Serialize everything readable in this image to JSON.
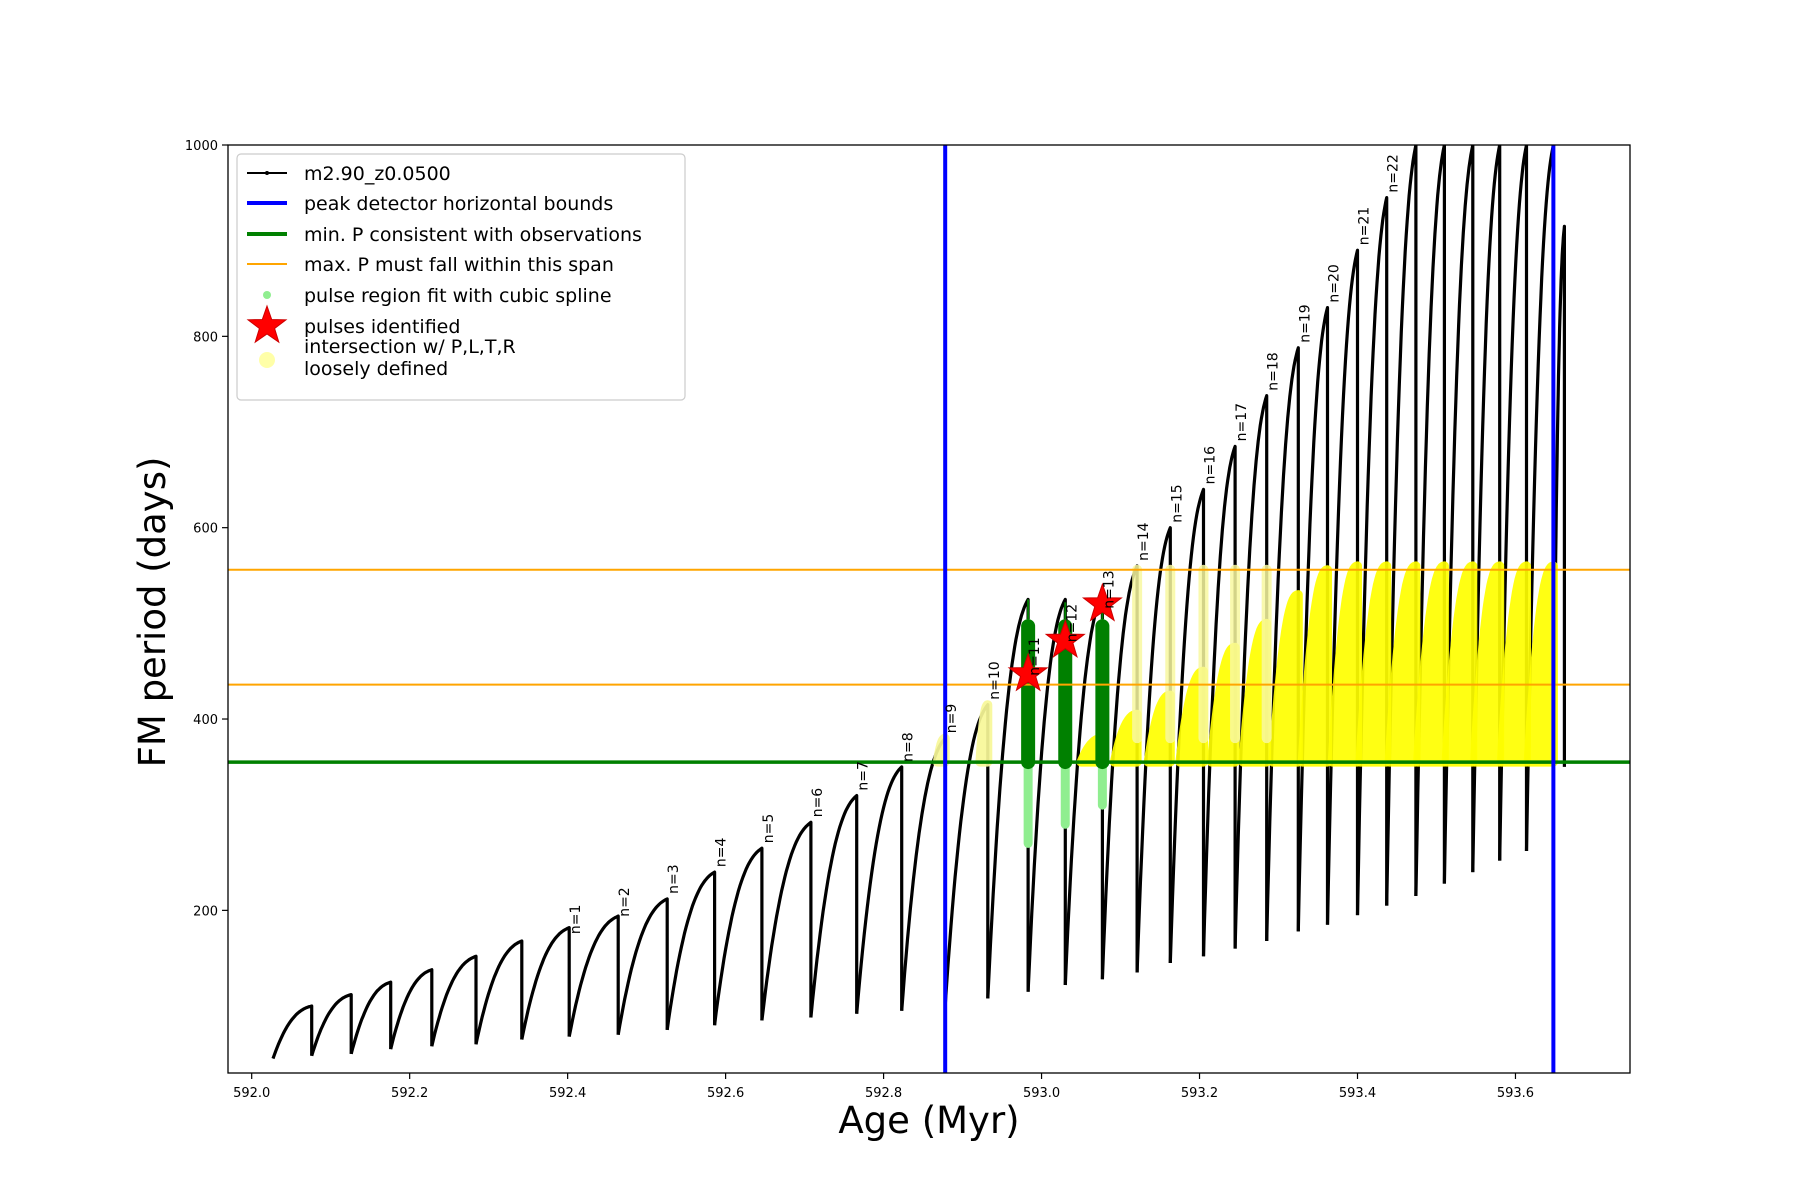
{
  "chart_data": {
    "type": "line",
    "xlabel": "Age (Myr)",
    "ylabel": "FM period (days)",
    "xlim": [
      591.97,
      593.745
    ],
    "ylim": [
      30,
      1000
    ],
    "xticks": [
      "592.0",
      "592.2",
      "592.4",
      "592.6",
      "592.8",
      "593.0",
      "593.2",
      "593.4",
      "593.6"
    ],
    "yticks": [
      "200",
      "400",
      "600",
      "800",
      "1000"
    ],
    "legend": {
      "placement": "top-left",
      "entries": [
        {
          "label": "m2.90_z0.0500",
          "kind": "line-dot",
          "color": "#000000"
        },
        {
          "label": "peak detector horizontal bounds",
          "kind": "line",
          "color": "#0000ff"
        },
        {
          "label": "min. P consistent with observations",
          "kind": "line",
          "color": "#008000"
        },
        {
          "label": "max. P must fall within this span",
          "kind": "thin-line",
          "color": "#ffa500"
        },
        {
          "label": "pulse region fit with cubic spline",
          "kind": "dot",
          "color": "#90ee90"
        },
        {
          "label": "pulses identified",
          "kind": "star",
          "color": "#ff0000"
        },
        {
          "label": "intersection w/ P,L,T,R",
          "label2": "loosely defined",
          "kind": "circle",
          "color": "#ffffa8"
        }
      ]
    },
    "series": [
      {
        "name": "m2.90_z0.0500",
        "color": "#000000",
        "pulses": [
          {
            "start": 592.027,
            "end": 592.076,
            "min": 45,
            "max": 100
          },
          {
            "start": 592.076,
            "end": 592.126,
            "min": 48,
            "max": 112
          },
          {
            "start": 592.126,
            "end": 592.176,
            "min": 50,
            "max": 125
          },
          {
            "start": 592.176,
            "end": 592.228,
            "min": 55,
            "max": 138
          },
          {
            "start": 592.228,
            "end": 592.284,
            "min": 58,
            "max": 152
          },
          {
            "start": 592.284,
            "end": 592.342,
            "min": 60,
            "max": 168
          },
          {
            "start": 592.342,
            "end": 592.402,
            "min": 65,
            "max": 182
          },
          {
            "start": 592.402,
            "end": 592.464,
            "min": 68,
            "max": 194
          },
          {
            "start": 592.464,
            "end": 592.526,
            "min": 70,
            "max": 212
          },
          {
            "start": 592.526,
            "end": 592.586,
            "min": 75,
            "max": 240
          },
          {
            "start": 592.586,
            "end": 592.646,
            "min": 80,
            "max": 265
          },
          {
            "start": 592.646,
            "end": 592.708,
            "min": 85,
            "max": 292
          },
          {
            "start": 592.708,
            "end": 592.766,
            "min": 88,
            "max": 320
          },
          {
            "start": 592.766,
            "end": 592.823,
            "min": 92,
            "max": 350
          },
          {
            "start": 592.823,
            "end": 592.878,
            "min": 95,
            "max": 380
          },
          {
            "start": 592.878,
            "end": 592.932,
            "min": 100,
            "max": 415
          },
          {
            "start": 592.932,
            "end": 592.983,
            "min": 108,
            "max": 525
          },
          {
            "start": 592.983,
            "end": 593.03,
            "min": 115,
            "max": 525
          },
          {
            "start": 593.03,
            "end": 593.077,
            "min": 122,
            "max": 530
          },
          {
            "start": 593.077,
            "end": 593.121,
            "min": 128,
            "max": 560
          },
          {
            "start": 593.121,
            "end": 593.163,
            "min": 135,
            "max": 600
          },
          {
            "start": 593.163,
            "end": 593.205,
            "min": 145,
            "max": 640
          },
          {
            "start": 593.205,
            "end": 593.245,
            "min": 152,
            "max": 685
          },
          {
            "start": 593.245,
            "end": 593.285,
            "min": 160,
            "max": 738
          },
          {
            "start": 593.285,
            "end": 593.325,
            "min": 168,
            "max": 788
          },
          {
            "start": 593.325,
            "end": 593.362,
            "min": 178,
            "max": 830
          },
          {
            "start": 593.362,
            "end": 593.4,
            "min": 185,
            "max": 890
          },
          {
            "start": 593.4,
            "end": 593.437,
            "min": 195,
            "max": 945
          },
          {
            "start": 593.437,
            "end": 593.474,
            "min": 205,
            "max": 1000
          },
          {
            "start": 593.474,
            "end": 593.51,
            "min": 215,
            "max": 1000
          },
          {
            "start": 593.51,
            "end": 593.546,
            "min": 228,
            "max": 1000
          },
          {
            "start": 593.546,
            "end": 593.58,
            "min": 240,
            "max": 1000
          },
          {
            "start": 593.58,
            "end": 593.614,
            "min": 252,
            "max": 1000
          },
          {
            "start": 593.614,
            "end": 593.648,
            "min": 262,
            "max": 1000
          },
          {
            "start": 593.648,
            "end": 593.662,
            "min": 350,
            "max": 915
          }
        ]
      }
    ],
    "pulse_labels": [
      {
        "text": "n=1",
        "x": 592.402,
        "y": 170
      },
      {
        "text": "n=2",
        "x": 592.464,
        "y": 188
      },
      {
        "text": "n=3",
        "x": 592.526,
        "y": 212
      },
      {
        "text": "n=4",
        "x": 592.586,
        "y": 240
      },
      {
        "text": "n=5",
        "x": 592.646,
        "y": 265
      },
      {
        "text": "n=6",
        "x": 592.708,
        "y": 292
      },
      {
        "text": "n=7",
        "x": 592.766,
        "y": 320
      },
      {
        "text": "n=8",
        "x": 592.823,
        "y": 350
      },
      {
        "text": "n=9",
        "x": 592.878,
        "y": 380
      },
      {
        "text": "n=10",
        "x": 592.932,
        "y": 415
      },
      {
        "text": "n=11",
        "x": 592.983,
        "y": 440
      },
      {
        "text": "n=12",
        "x": 593.03,
        "y": 475
      },
      {
        "text": "n=13",
        "x": 593.077,
        "y": 510
      },
      {
        "text": "n=14",
        "x": 593.121,
        "y": 560
      },
      {
        "text": "n=15",
        "x": 593.163,
        "y": 600
      },
      {
        "text": "n=16",
        "x": 593.205,
        "y": 640
      },
      {
        "text": "n=17",
        "x": 593.245,
        "y": 685
      },
      {
        "text": "n=18",
        "x": 593.285,
        "y": 738
      },
      {
        "text": "n=19",
        "x": 593.325,
        "y": 788
      },
      {
        "text": "n=20",
        "x": 593.362,
        "y": 830
      },
      {
        "text": "n=21",
        "x": 593.4,
        "y": 890
      },
      {
        "text": "n=22",
        "x": 593.437,
        "y": 945
      }
    ],
    "vertical_bounds": [
      592.878,
      593.648
    ],
    "min_period": 355,
    "max_period_span": [
      436,
      556
    ],
    "spline_regions": [
      {
        "x": 592.983,
        "y_min": 270,
        "y_max": 500
      },
      {
        "x": 593.03,
        "y_min": 290,
        "y_max": 500
      },
      {
        "x": 593.077,
        "y_min": 310,
        "y_max": 500
      }
    ],
    "fit_regions": [
      {
        "x": 592.983,
        "y_min": 355,
        "y_max": 497,
        "top": 525
      },
      {
        "x": 593.03,
        "y_min": 355,
        "y_max": 497,
        "top": 522
      },
      {
        "x": 593.077,
        "y_min": 355,
        "y_max": 497,
        "top": 520
      }
    ],
    "pulses_identified": [
      {
        "x": 592.983,
        "y": 447
      },
      {
        "x": 593.03,
        "y": 482
      },
      {
        "x": 593.077,
        "y": 520
      }
    ],
    "intersection_pulses": [
      {
        "start": 592.868,
        "end": 592.878,
        "min": 355,
        "max": 380,
        "solid": false
      },
      {
        "start": 592.922,
        "end": 592.932,
        "min": 355,
        "max": 415,
        "solid": false
      },
      {
        "start": 593.05,
        "end": 593.077,
        "min": 355,
        "max": 380,
        "solid": true
      },
      {
        "start": 593.092,
        "end": 593.121,
        "min": 355,
        "max": 405,
        "solid": true
      },
      {
        "start": 593.135,
        "end": 593.163,
        "min": 355,
        "max": 425,
        "solid": true
      },
      {
        "start": 593.175,
        "end": 593.205,
        "min": 355,
        "max": 450,
        "solid": true
      },
      {
        "start": 593.215,
        "end": 593.245,
        "min": 355,
        "max": 475,
        "solid": true
      },
      {
        "start": 593.255,
        "end": 593.285,
        "min": 355,
        "max": 500,
        "solid": true
      },
      {
        "start": 593.293,
        "end": 593.325,
        "min": 355,
        "max": 530,
        "solid": true
      },
      {
        "start": 593.33,
        "end": 593.362,
        "min": 355,
        "max": 556,
        "solid": true
      },
      {
        "start": 593.368,
        "end": 593.4,
        "min": 355,
        "max": 560,
        "solid": true
      },
      {
        "start": 593.403,
        "end": 593.437,
        "min": 355,
        "max": 560,
        "solid": true
      },
      {
        "start": 593.44,
        "end": 593.474,
        "min": 355,
        "max": 560,
        "solid": true
      },
      {
        "start": 593.476,
        "end": 593.51,
        "min": 355,
        "max": 560,
        "solid": true
      },
      {
        "start": 593.512,
        "end": 593.546,
        "min": 355,
        "max": 560,
        "solid": true
      },
      {
        "start": 593.548,
        "end": 593.58,
        "min": 355,
        "max": 560,
        "solid": true
      },
      {
        "start": 593.582,
        "end": 593.614,
        "min": 355,
        "max": 560,
        "solid": true
      },
      {
        "start": 593.616,
        "end": 593.648,
        "min": 355,
        "max": 560,
        "solid": true
      }
    ],
    "intersection_spikes": [
      {
        "x": 593.121,
        "y_min": 380,
        "y_max": 556
      },
      {
        "x": 593.163,
        "y_min": 380,
        "y_max": 556
      },
      {
        "x": 593.205,
        "y_min": 380,
        "y_max": 556
      },
      {
        "x": 593.245,
        "y_min": 380,
        "y_max": 556
      },
      {
        "x": 593.285,
        "y_min": 380,
        "y_max": 556
      }
    ]
  }
}
